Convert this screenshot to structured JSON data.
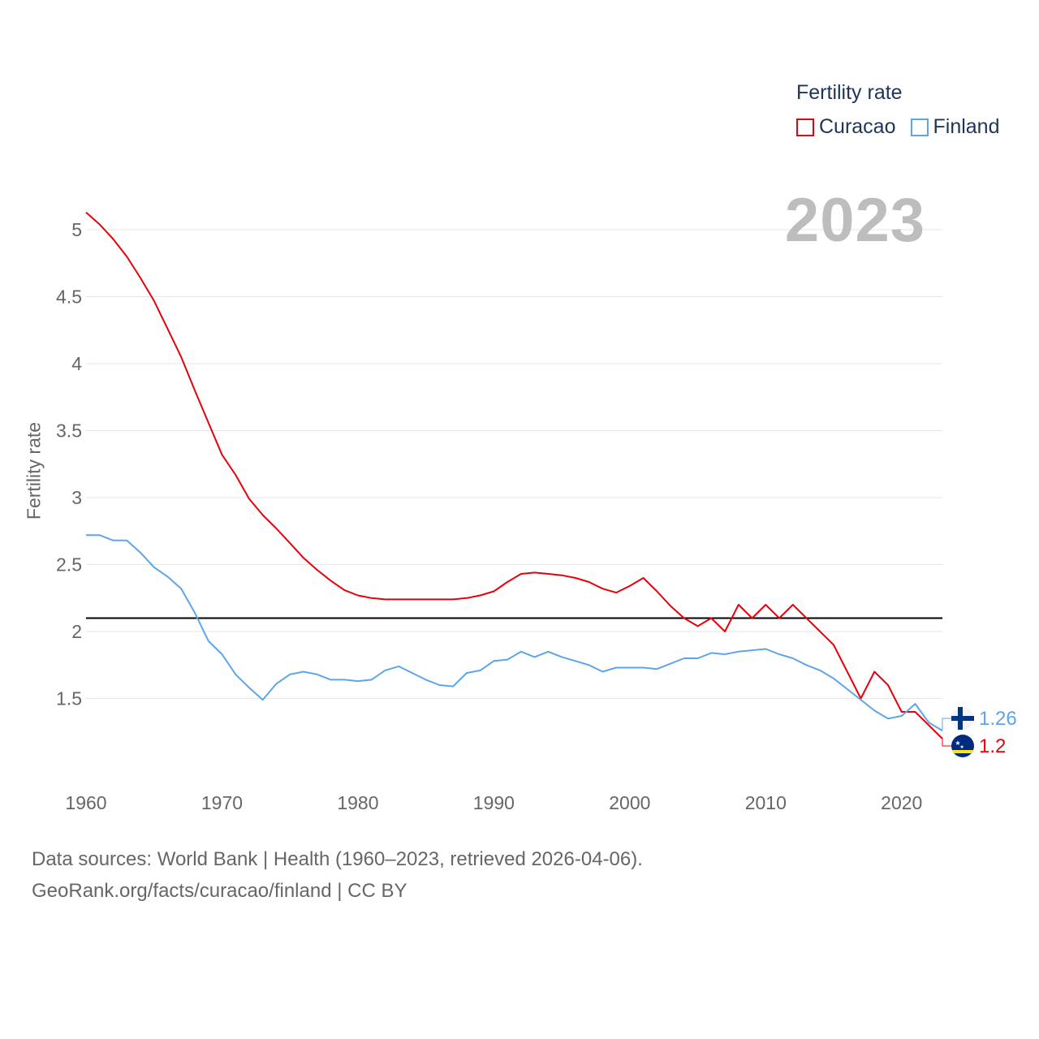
{
  "legend": {
    "title": "Fertility rate",
    "items": [
      {
        "name": "Curacao",
        "color": "#e8000b"
      },
      {
        "name": "Finland",
        "color": "#5da5e8"
      }
    ]
  },
  "year_label": "2023",
  "footer": {
    "line1": "Data sources: World Bank | Health (1960–2023, retrieved 2026-04-06).",
    "line2": "GeoRank.org/facts/curacao/finland | CC BY"
  },
  "chart_data": {
    "type": "line",
    "title": "",
    "xlabel": "",
    "ylabel": "Fertility rate",
    "xlim": [
      1960,
      2023
    ],
    "ylim": [
      1.0,
      5.2
    ],
    "x_ticks": [
      "1960",
      "1970",
      "1980",
      "1990",
      "2000",
      "2010",
      "2020"
    ],
    "y_ticks": [
      "1.5",
      "2",
      "2.5",
      "3",
      "3.5",
      "4",
      "4.5",
      "5"
    ],
    "grid": true,
    "reference_line": {
      "y": 2.1,
      "color": "#000000"
    },
    "x": [
      1960,
      1961,
      1962,
      1963,
      1964,
      1965,
      1966,
      1967,
      1968,
      1969,
      1970,
      1971,
      1972,
      1973,
      1974,
      1975,
      1976,
      1977,
      1978,
      1979,
      1980,
      1981,
      1982,
      1983,
      1984,
      1985,
      1986,
      1987,
      1988,
      1989,
      1990,
      1991,
      1992,
      1993,
      1994,
      1995,
      1996,
      1997,
      1998,
      1999,
      2000,
      2001,
      2002,
      2003,
      2004,
      2005,
      2006,
      2007,
      2008,
      2009,
      2010,
      2011,
      2012,
      2013,
      2014,
      2015,
      2016,
      2017,
      2018,
      2019,
      2020,
      2021,
      2022,
      2023
    ],
    "series": [
      {
        "name": "Curacao",
        "color": "#e8000b",
        "end_label": "1.2",
        "values": [
          5.13,
          5.04,
          4.93,
          4.8,
          4.64,
          4.47,
          4.26,
          4.05,
          3.8,
          3.56,
          3.32,
          3.17,
          2.99,
          2.87,
          2.77,
          2.66,
          2.55,
          2.46,
          2.38,
          2.31,
          2.27,
          2.25,
          2.24,
          2.24,
          2.24,
          2.24,
          2.24,
          2.24,
          2.25,
          2.27,
          2.3,
          2.37,
          2.43,
          2.44,
          2.43,
          2.42,
          2.4,
          2.37,
          2.32,
          2.29,
          2.34,
          2.4,
          2.3,
          2.19,
          2.1,
          2.04,
          2.1,
          2.0,
          2.2,
          2.1,
          2.2,
          2.1,
          2.2,
          2.1,
          2.0,
          1.9,
          1.7,
          1.5,
          1.7,
          1.6,
          1.4,
          1.4,
          1.3,
          1.2
        ]
      },
      {
        "name": "Finland",
        "color": "#5da5e8",
        "end_label": "1.26",
        "values": [
          2.72,
          2.72,
          2.68,
          2.68,
          2.59,
          2.48,
          2.41,
          2.32,
          2.14,
          1.93,
          1.83,
          1.68,
          1.58,
          1.49,
          1.61,
          1.68,
          1.7,
          1.68,
          1.64,
          1.64,
          1.63,
          1.64,
          1.71,
          1.74,
          1.69,
          1.64,
          1.6,
          1.59,
          1.69,
          1.71,
          1.78,
          1.79,
          1.85,
          1.81,
          1.85,
          1.81,
          1.78,
          1.75,
          1.7,
          1.73,
          1.73,
          1.73,
          1.72,
          1.76,
          1.8,
          1.8,
          1.84,
          1.83,
          1.85,
          1.86,
          1.87,
          1.83,
          1.8,
          1.75,
          1.71,
          1.65,
          1.57,
          1.49,
          1.41,
          1.35,
          1.37,
          1.46,
          1.32,
          1.26
        ]
      }
    ]
  }
}
